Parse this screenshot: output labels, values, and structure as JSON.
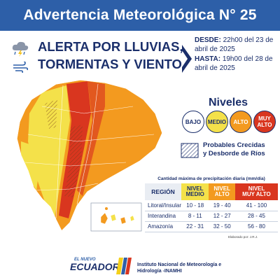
{
  "header": {
    "title": "Advertencia Meteorológica N° 25",
    "color": "#2d5fa8"
  },
  "alert": {
    "line1": "ALERTA POR LLUVIAS,",
    "line2": "TORMENTAS Y VIENTO",
    "icons": [
      "storm-cloud-icon",
      "wind-icon"
    ]
  },
  "dates": {
    "desde_label": "DESDE:",
    "desde_value": "22h00 del 23 de abril de 2025",
    "hasta_label": "HASTA:",
    "hasta_value": "19h00 del 28 de abril de 2025"
  },
  "levels": {
    "title": "Niveles",
    "bajo": "BAJO",
    "medio": "MEDIO",
    "alto": "ALTO",
    "muy_alto_1": "MUY",
    "muy_alto_2": "ALTO",
    "colors": {
      "bajo": "#ffffff",
      "medio": "#f4e14a",
      "alto": "#f39a1f",
      "muy_alto": "#d9361f"
    }
  },
  "crecidas": {
    "line1": "Probables Crecidas",
    "line2": "y Desborde de Ríos"
  },
  "table": {
    "caption": "Cantidad máxima de precipitación diaria (mm/día)",
    "headers": {
      "region": "REGIÓN",
      "medio_1": "NIVEL",
      "medio_2": "MEDIO",
      "alto_1": "NIVEL",
      "alto_2": "ALTO",
      "muy_1": "NIVEL",
      "muy_2": "MUY ALTO"
    },
    "rows": [
      {
        "region": "Litoral/Insular",
        "medio": "10 - 18",
        "alto": "19 - 40",
        "muy": "41 - 100"
      },
      {
        "region": "Interandina",
        "medio": "8 - 11",
        "alto": "12 - 27",
        "muy": "28 - 45"
      },
      {
        "region": "Amazonía",
        "medio": "22 - 31",
        "alto": "32 - 50",
        "muy": "56 - 80"
      }
    ]
  },
  "credit": "Elaborado por: J.R.J.",
  "footer": {
    "logo_small": "EL NUEVO",
    "logo_main": "ECUADOR",
    "inamhi_1": "Instituto Nacional de Meteorología e",
    "inamhi_2": "Hidrología -INAMHI"
  }
}
